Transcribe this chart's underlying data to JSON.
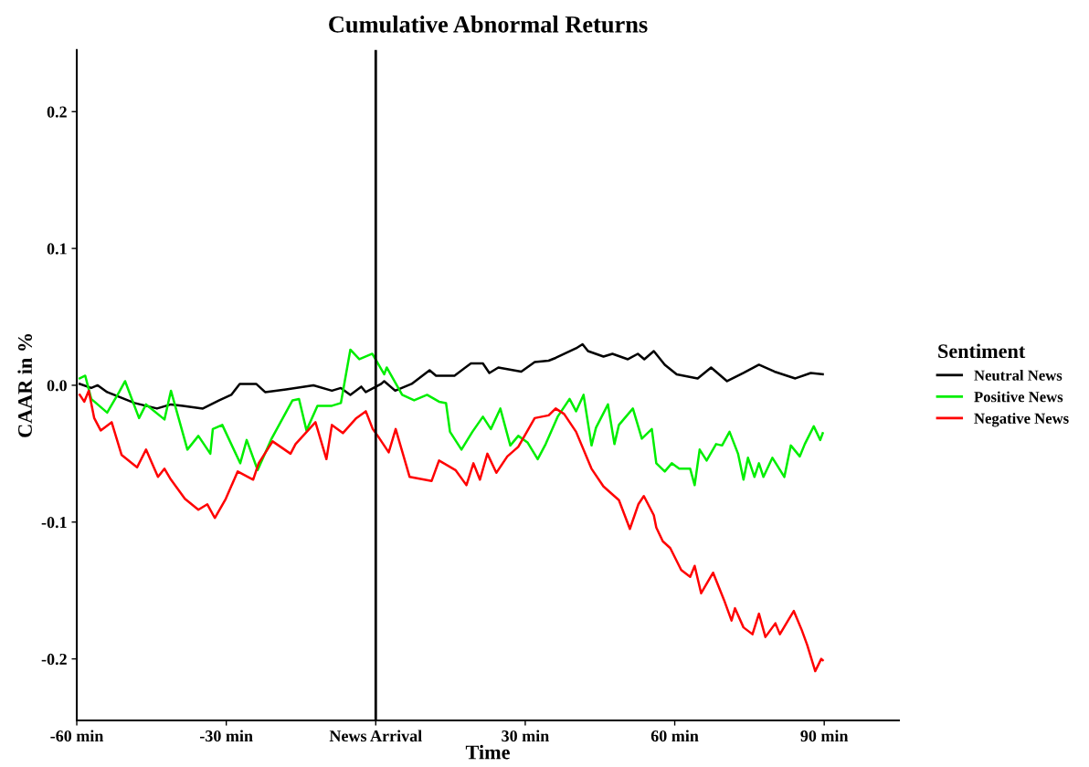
{
  "chart_data": {
    "type": "line",
    "title": "Cumulative Abnormal Returns",
    "xlabel": "Time",
    "ylabel": "CAAR in %",
    "legend_title": "Sentiment",
    "legend": "right",
    "grid": false,
    "xlim": [
      -60,
      105
    ],
    "xticks": [
      {
        "value": -60,
        "label": "-60 min"
      },
      {
        "value": -30,
        "label": "-30 min"
      },
      {
        "value": 0,
        "label": "News Arrival"
      },
      {
        "value": 30,
        "label": "30 min"
      },
      {
        "value": 60,
        "label": "60 min"
      },
      {
        "value": 90,
        "label": "90 min"
      }
    ],
    "ylim": [
      -0.245,
      0.245
    ],
    "yticks": [
      {
        "value": -0.2,
        "label": "-0.2"
      },
      {
        "value": -0.1,
        "label": "-0.1"
      },
      {
        "value": 0,
        "label": "0.0"
      },
      {
        "value": 0.1,
        "label": "0.1"
      },
      {
        "value": 0.2,
        "label": "0.2"
      }
    ],
    "ref_lines": [
      {
        "axis": "x",
        "value": 0,
        "label": null,
        "color": "#000000"
      }
    ],
    "series": [
      {
        "name": "Neutral News",
        "color": "#000000",
        "x": [
          -59.4,
          -57.1,
          -55.8,
          -53.9,
          -48.4,
          -43.9,
          -41.1,
          -38.7,
          -34.7,
          -31.4,
          -29.0,
          -27.3,
          -24.0,
          -22.2,
          -18.0,
          -12.5,
          -8.8,
          -7.0,
          -5.1,
          -2.9,
          -2.0,
          1.1,
          1.7,
          3.9,
          7.2,
          10.8,
          12.1,
          15.8,
          19.1,
          21.5,
          22.8,
          24.6,
          29.2,
          31.9,
          34.7,
          36.1,
          40.2,
          41.5,
          42.6,
          45.7,
          47.5,
          50.6,
          52.6,
          53.9,
          55.8,
          58.0,
          60.4,
          64.6,
          67.3,
          70.5,
          73.8,
          76.9,
          80.0,
          84.2,
          87.3,
          89.7
        ],
        "values": [
          0.001,
          -0.002,
          0.0,
          -0.005,
          -0.013,
          -0.017,
          -0.014,
          -0.015,
          -0.017,
          -0.011,
          -0.007,
          0.001,
          0.001,
          -0.005,
          -0.003,
          0.0,
          -0.004,
          -0.002,
          -0.007,
          -0.001,
          -0.005,
          0.001,
          0.003,
          -0.004,
          0.001,
          0.011,
          0.007,
          0.007,
          0.016,
          0.016,
          0.009,
          0.013,
          0.01,
          0.017,
          0.018,
          0.02,
          0.027,
          0.03,
          0.025,
          0.021,
          0.023,
          0.019,
          0.023,
          0.019,
          0.025,
          0.015,
          0.008,
          0.005,
          0.013,
          0.003,
          0.009,
          0.015,
          0.01,
          0.005,
          0.009,
          0.008
        ]
      },
      {
        "name": "Positive News",
        "color": "#00ee00",
        "x": [
          -59.4,
          -58.3,
          -57.1,
          -53.9,
          -51.5,
          -50.3,
          -47.5,
          -46.1,
          -42.4,
          -41.1,
          -37.8,
          -35.6,
          -33.2,
          -32.7,
          -30.8,
          -27.2,
          -25.9,
          -23.7,
          -20.9,
          -16.7,
          -15.4,
          -13.9,
          -11.7,
          -8.8,
          -7.0,
          -5.1,
          -3.3,
          -0.7,
          1.7,
          2.2,
          5.3,
          7.7,
          10.3,
          12.7,
          14.1,
          14.9,
          17.2,
          19.4,
          21.5,
          23.1,
          25.0,
          27.0,
          28.6,
          30.5,
          32.5,
          34.1,
          36.5,
          38.9,
          40.2,
          41.7,
          43.3,
          44.2,
          46.6,
          47.9,
          48.8,
          51.6,
          53.4,
          55.4,
          56.3,
          58.0,
          59.4,
          60.9,
          63.1,
          64.0,
          65.0,
          66.4,
          68.3,
          69.5,
          71.0,
          72.7,
          73.8,
          74.7,
          76.0,
          76.9,
          77.8,
          79.6,
          82.0,
          83.3,
          85.1,
          86.1,
          87.9,
          89.2,
          89.7
        ],
        "values": [
          0.005,
          0.007,
          -0.01,
          -0.02,
          -0.005,
          0.003,
          -0.024,
          -0.014,
          -0.025,
          -0.004,
          -0.047,
          -0.037,
          -0.05,
          -0.032,
          -0.029,
          -0.057,
          -0.04,
          -0.062,
          -0.039,
          -0.011,
          -0.01,
          -0.033,
          -0.015,
          -0.015,
          -0.013,
          0.026,
          0.019,
          0.023,
          0.008,
          0.013,
          -0.007,
          -0.011,
          -0.007,
          -0.012,
          -0.013,
          -0.034,
          -0.047,
          -0.034,
          -0.023,
          -0.032,
          -0.017,
          -0.044,
          -0.037,
          -0.042,
          -0.054,
          -0.043,
          -0.023,
          -0.01,
          -0.019,
          -0.007,
          -0.044,
          -0.031,
          -0.014,
          -0.043,
          -0.029,
          -0.017,
          -0.039,
          -0.032,
          -0.057,
          -0.063,
          -0.057,
          -0.061,
          -0.061,
          -0.073,
          -0.047,
          -0.055,
          -0.043,
          -0.044,
          -0.034,
          -0.05,
          -0.069,
          -0.053,
          -0.067,
          -0.057,
          -0.067,
          -0.053,
          -0.067,
          -0.044,
          -0.052,
          -0.043,
          -0.03,
          -0.04,
          -0.035
        ]
      },
      {
        "name": "Negative News",
        "color": "#ff0000",
        "x": [
          -59.4,
          -58.5,
          -57.6,
          -56.5,
          -55.2,
          -53.0,
          -51.0,
          -47.9,
          -46.1,
          -43.7,
          -42.4,
          -41.1,
          -38.3,
          -35.6,
          -33.8,
          -32.3,
          -30.1,
          -27.7,
          -24.6,
          -23.5,
          -20.7,
          -17.1,
          -16.1,
          -12.1,
          -9.9,
          -8.8,
          -6.6,
          -3.9,
          -2.0,
          -0.6,
          0.4,
          2.6,
          4.0,
          6.8,
          11.2,
          12.7,
          16.0,
          18.2,
          19.6,
          20.9,
          22.4,
          24.2,
          26.4,
          28.6,
          31.9,
          34.7,
          36.1,
          37.8,
          40.2,
          43.3,
          45.7,
          48.8,
          51.0,
          52.7,
          53.8,
          55.8,
          56.3,
          57.6,
          59.1,
          61.3,
          63.1,
          64.0,
          65.3,
          67.7,
          69.9,
          71.4,
          72.1,
          73.8,
          75.6,
          76.9,
          78.2,
          80.2,
          81.1,
          82.9,
          83.9,
          85.5,
          86.6,
          88.2,
          89.4,
          89.7
        ],
        "values": [
          -0.007,
          -0.012,
          -0.004,
          -0.024,
          -0.033,
          -0.027,
          -0.051,
          -0.06,
          -0.047,
          -0.067,
          -0.061,
          -0.069,
          -0.083,
          -0.091,
          -0.087,
          -0.097,
          -0.083,
          -0.063,
          -0.069,
          -0.057,
          -0.041,
          -0.05,
          -0.043,
          -0.027,
          -0.054,
          -0.029,
          -0.035,
          -0.024,
          -0.019,
          -0.032,
          -0.037,
          -0.049,
          -0.032,
          -0.067,
          -0.07,
          -0.055,
          -0.062,
          -0.073,
          -0.057,
          -0.069,
          -0.05,
          -0.064,
          -0.052,
          -0.045,
          -0.024,
          -0.022,
          -0.017,
          -0.021,
          -0.034,
          -0.061,
          -0.074,
          -0.084,
          -0.105,
          -0.087,
          -0.081,
          -0.095,
          -0.104,
          -0.114,
          -0.119,
          -0.135,
          -0.14,
          -0.132,
          -0.152,
          -0.137,
          -0.157,
          -0.172,
          -0.163,
          -0.177,
          -0.182,
          -0.167,
          -0.184,
          -0.174,
          -0.182,
          -0.171,
          -0.165,
          -0.179,
          -0.19,
          -0.209,
          -0.2,
          -0.201
        ]
      }
    ]
  }
}
